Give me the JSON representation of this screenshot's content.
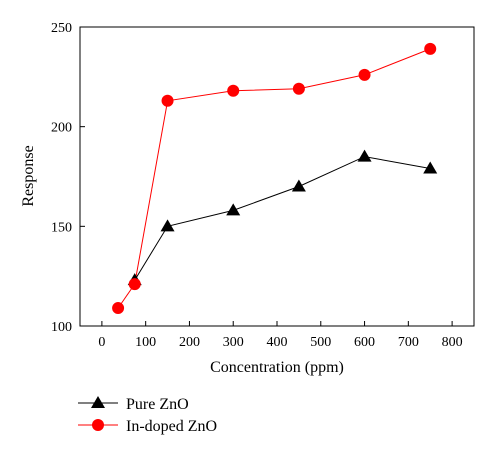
{
  "chart_data": {
    "type": "line",
    "title": "",
    "xlabel": "Concentration (ppm)",
    "ylabel": "Response",
    "xlim": [
      -50,
      850
    ],
    "ylim": [
      100,
      250
    ],
    "xticks": [
      0,
      100,
      200,
      300,
      400,
      500,
      600,
      700,
      800
    ],
    "yticks": [
      100,
      150,
      200,
      250
    ],
    "grid": false,
    "legend_position": "bottom-left, below plot",
    "series": [
      {
        "name": "Pure ZnO",
        "marker": "triangle",
        "color": "#000000",
        "x": [
          75,
          150,
          300,
          450,
          600,
          750
        ],
        "y": [
          123,
          150,
          158,
          170,
          185,
          179
        ]
      },
      {
        "name": "In-doped ZnO",
        "marker": "circle",
        "color": "#ff0000",
        "x": [
          37,
          75,
          150,
          300,
          450,
          600,
          750
        ],
        "y": [
          109,
          121,
          213,
          218,
          219,
          226,
          239
        ]
      }
    ]
  }
}
